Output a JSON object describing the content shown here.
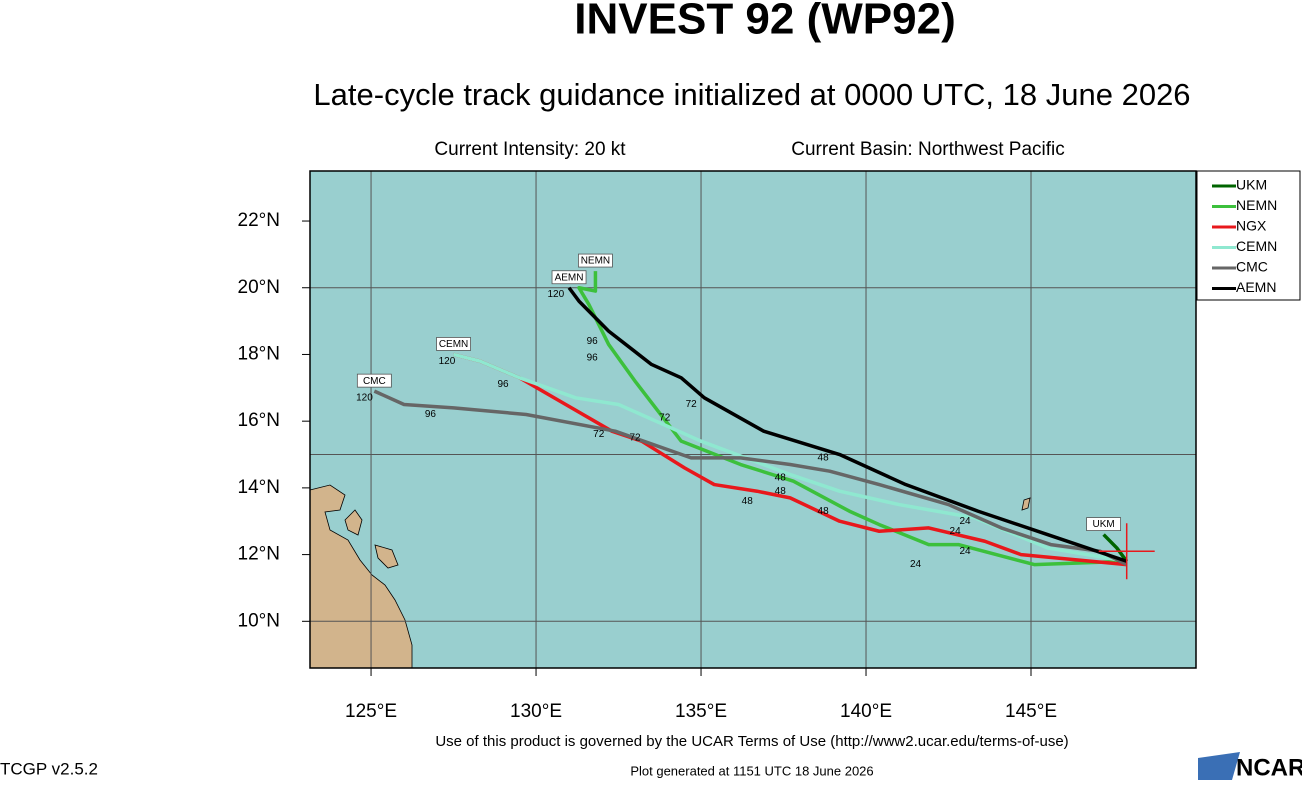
{
  "header": {
    "title": "INVEST 92 (WP92)",
    "subtitle": "Late-cycle track guidance initialized at 0000 UTC, 18 June 2026",
    "intensity": "Current Intensity: 20 kt",
    "basin": "Current Basin: Northwest Pacific"
  },
  "chart_data": {
    "type": "track-map",
    "xlim": [
      123.15,
      150
    ],
    "ylim": [
      8.6,
      23.5
    ],
    "xticks": [
      {
        "value": 125,
        "label": "125°E"
      },
      {
        "value": 130,
        "label": "130°E"
      },
      {
        "value": 135,
        "label": "135°E"
      },
      {
        "value": 140,
        "label": "140°E"
      },
      {
        "value": 145,
        "label": "145°E"
      }
    ],
    "yticks": [
      {
        "value": 10,
        "label": "10°N"
      },
      {
        "value": 12,
        "label": "12°N"
      },
      {
        "value": 14,
        "label": "14°N"
      },
      {
        "value": 16,
        "label": "16°N"
      },
      {
        "value": 18,
        "label": "18°N"
      },
      {
        "value": 20,
        "label": "20°N"
      },
      {
        "value": 22,
        "label": "22°N"
      }
    ],
    "xgrid": [
      125,
      130,
      135,
      140,
      145
    ],
    "ygrid": [
      10,
      15,
      20
    ],
    "current_position": {
      "lon": 147.9,
      "lat": 12.1
    },
    "series": [
      {
        "name": "UKM",
        "color": "#006400",
        "labeled": true,
        "lon": [
          147.9,
          147.6,
          147.2
        ],
        "lat": [
          11.8,
          12.2,
          12.6
        ]
      },
      {
        "name": "NEMN",
        "color": "#3cc03c",
        "labeled": true,
        "lon": [
          147.9,
          145.1,
          142.8,
          141.9,
          140.4,
          139.5,
          137.8,
          136.2,
          134.4,
          133.7,
          133.0,
          132.2,
          131.6,
          131.3,
          131.8,
          131.8
        ],
        "lat": [
          11.8,
          11.7,
          12.3,
          12.3,
          12.9,
          13.3,
          14.2,
          14.7,
          15.4,
          16.3,
          17.2,
          18.3,
          19.5,
          20.0,
          19.9,
          20.5
        ]
      },
      {
        "name": "NGX",
        "color": "#e8181c",
        "labeled": false,
        "lon": [
          147.9,
          144.7,
          143.6,
          141.9,
          140.4,
          139.2,
          137.7,
          136.7,
          135.4,
          134.5,
          133.2,
          132.3,
          130.9,
          129.5,
          128.3,
          127.5
        ],
        "lat": [
          11.7,
          12.0,
          12.4,
          12.8,
          12.7,
          13.0,
          13.7,
          13.9,
          14.1,
          14.6,
          15.4,
          15.7,
          16.5,
          17.3,
          17.8,
          18.0
        ]
      },
      {
        "name": "CEMN",
        "color": "#8fe8d0",
        "labeled": true,
        "lon": [
          147.9,
          145.5,
          143.3,
          141.0,
          139.2,
          137.7,
          135.0,
          132.5,
          131.2,
          129.5,
          128.3,
          127.5
        ],
        "lat": [
          11.8,
          12.2,
          13.1,
          13.5,
          13.9,
          14.4,
          15.4,
          16.5,
          16.7,
          17.3,
          17.8,
          18.0
        ]
      },
      {
        "name": "CMC",
        "color": "#666666",
        "labeled": true,
        "lon": [
          147.9,
          147.1,
          145.6,
          144.1,
          142.5,
          140.4,
          138.9,
          137.7,
          136.2,
          134.7,
          132.4,
          129.7,
          127.5,
          126.0,
          125.1
        ],
        "lat": [
          11.7,
          12.1,
          12.3,
          12.8,
          13.5,
          14.1,
          14.5,
          14.7,
          14.9,
          14.9,
          15.7,
          16.2,
          16.4,
          16.5,
          16.9
        ]
      },
      {
        "name": "AEMN",
        "color": "#000000",
        "labeled": true,
        "lon": [
          147.9,
          145.5,
          143.4,
          141.2,
          139.2,
          136.9,
          135.1,
          134.4,
          133.5,
          132.2,
          131.3,
          131.0
        ],
        "lat": [
          11.8,
          12.6,
          13.3,
          14.1,
          15.0,
          15.7,
          16.7,
          17.3,
          17.7,
          18.7,
          19.6,
          20.0
        ]
      }
    ],
    "hour_labels": [
      {
        "hour": 24,
        "lon": 143.0,
        "lat": 12.1
      },
      {
        "hour": 24,
        "lon": 141.5,
        "lat": 11.7
      },
      {
        "hour": 24,
        "lon": 142.7,
        "lat": 12.7
      },
      {
        "hour": 24,
        "lon": 143.0,
        "lat": 13.0
      },
      {
        "hour": 48,
        "lon": 138.7,
        "lat": 13.3
      },
      {
        "hour": 48,
        "lon": 136.4,
        "lat": 13.6
      },
      {
        "hour": 48,
        "lon": 137.4,
        "lat": 14.3
      },
      {
        "hour": 48,
        "lon": 137.4,
        "lat": 13.9
      },
      {
        "hour": 48,
        "lon": 138.7,
        "lat": 14.9
      },
      {
        "hour": 72,
        "lon": 133.0,
        "lat": 15.5
      },
      {
        "hour": 72,
        "lon": 131.9,
        "lat": 15.6
      },
      {
        "hour": 72,
        "lon": 133.9,
        "lat": 16.1
      },
      {
        "hour": 72,
        "lon": 134.7,
        "lat": 16.5
      },
      {
        "hour": 96,
        "lon": 126.8,
        "lat": 16.2
      },
      {
        "hour": 96,
        "lon": 129.0,
        "lat": 17.1
      },
      {
        "hour": 96,
        "lon": 131.7,
        "lat": 18.4
      },
      {
        "hour": 96,
        "lon": 131.7,
        "lat": 17.9
      },
      {
        "hour": 120,
        "lon": 124.8,
        "lat": 16.7
      },
      {
        "hour": 120,
        "lon": 130.6,
        "lat": 19.8
      },
      {
        "hour": 120,
        "lon": 127.3,
        "lat": 17.8
      }
    ]
  },
  "footer": {
    "terms": "Use of this product is governed by the UCAR Terms of Use (http://www2.ucar.edu/terms-of-use)",
    "version": "TCGP v2.5.2",
    "generated": "Plot generated at 1151 UTC   18 June 2026",
    "logo": "NCAR"
  }
}
